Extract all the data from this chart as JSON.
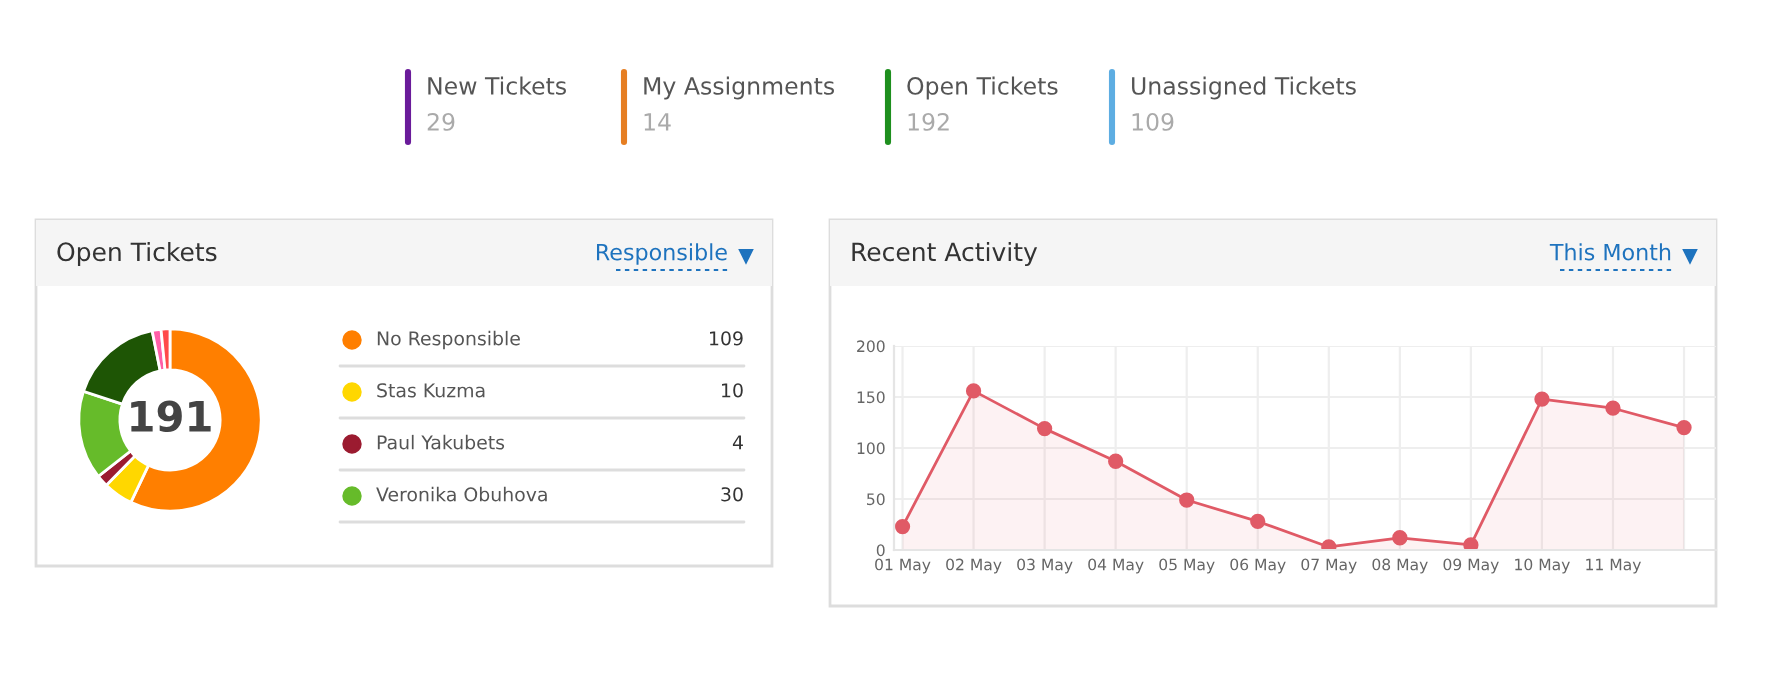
{
  "chart_data": [
    {
      "type": "other",
      "categories": [
        "New Tickets",
        "My Assignments",
        "Open Tickets",
        "Unassigned Tickets"
      ],
      "values": [
        29,
        14,
        192,
        109
      ],
      "colors": [
        "#6a1b9a",
        "#e67e22",
        "#1e8f1e",
        "#5dade2"
      ],
      "data_labels": true
    },
    {
      "type": "donut",
      "title": "Open Tickets",
      "annotations": [
        "Responsible",
        "191"
      ],
      "categories": [
        "No Responsible",
        "Stas Kuzma",
        "Paul Yakubets",
        "Veronika Obuhova",
        null,
        null,
        null
      ],
      "values": [
        109,
        10,
        4,
        30,
        32,
        3,
        3
      ],
      "colors": [
        "#ff7f00",
        "#ffd700",
        "#9b1b30",
        "#66bb2a",
        "#1e5505",
        "#ff5fa8",
        "#ff4a4a"
      ],
      "value_labels": [
        "109",
        "10",
        "4",
        "30",
        null,
        null,
        null
      ],
      "legend": "right"
    },
    {
      "type": "area",
      "title": "Recent Activity",
      "annotations": [
        "This Month"
      ],
      "categories": [
        "01 May",
        "02 May",
        "03 May",
        "04 May",
        "05 May",
        "06 May",
        "07 May",
        "08 May",
        "09 May",
        "10 May",
        "11 May",
        null
      ],
      "series": [
        {
          "color": "#e05a66",
          "values": [
            23,
            156,
            119,
            87,
            49,
            28,
            3,
            12,
            5,
            148,
            139,
            120
          ]
        }
      ],
      "ylim": [
        0,
        200
      ],
      "yticks": [
        0,
        50,
        100,
        150,
        200
      ],
      "grid": true,
      "marker": "circle"
    }
  ]
}
